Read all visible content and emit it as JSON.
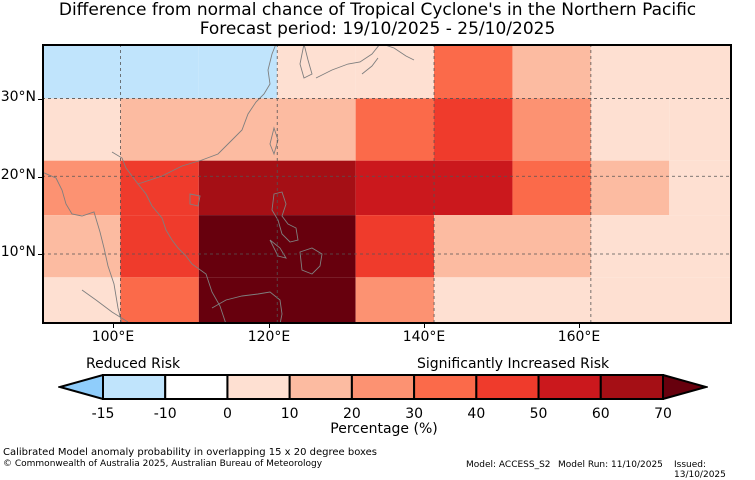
{
  "title": {
    "line1": "Difference from normal chance of Tropical Cyclone's in the Northern Pacific",
    "line2": "Forecast period: 19/10/2025 - 25/10/2025"
  },
  "map": {
    "lon_range": [
      90,
      178
    ],
    "lat_range": [
      1,
      37
    ],
    "lat_labels": [
      "30°N",
      "20°N",
      "10°N"
    ],
    "lat_values": [
      30,
      20,
      10
    ],
    "lon_labels": [
      "100°E",
      "120°E",
      "140°E",
      "160°E"
    ],
    "lon_values": [
      100,
      120,
      140,
      160
    ],
    "cells": [
      {
        "lon0": 90,
        "lon1": 110,
        "lat0": 30,
        "lat1": 37,
        "v": -14
      },
      {
        "lon0": 110,
        "lon1": 120,
        "lat0": 30,
        "lat1": 37,
        "v": -14
      },
      {
        "lon0": 120,
        "lon1": 130,
        "lat0": 30,
        "lat1": 37,
        "v": 0
      },
      {
        "lon0": 130,
        "lon1": 140,
        "lat0": 30,
        "lat1": 37,
        "v": 0
      },
      {
        "lon0": 140,
        "lon1": 150,
        "lat0": 30,
        "lat1": 37,
        "v": 34
      },
      {
        "lon0": 150,
        "lon1": 160,
        "lat0": 30,
        "lat1": 37,
        "v": 18
      },
      {
        "lon0": 160,
        "lon1": 178,
        "lat0": 30,
        "lat1": 37,
        "v": 0
      },
      {
        "lon0": 90,
        "lon1": 100,
        "lat0": 22,
        "lat1": 30,
        "v": 0
      },
      {
        "lon0": 100,
        "lon1": 130,
        "lat0": 22,
        "lat1": 30,
        "v": 15
      },
      {
        "lon0": 130,
        "lon1": 140,
        "lat0": 22,
        "lat1": 30,
        "v": 35
      },
      {
        "lon0": 140,
        "lon1": 150,
        "lat0": 22,
        "lat1": 30,
        "v": 43
      },
      {
        "lon0": 150,
        "lon1": 160,
        "lat0": 22,
        "lat1": 30,
        "v": 25
      },
      {
        "lon0": 160,
        "lon1": 170,
        "lat0": 22,
        "lat1": 30,
        "v": 5
      },
      {
        "lon0": 170,
        "lon1": 178,
        "lat0": 22,
        "lat1": 30,
        "v": 0
      },
      {
        "lon0": 90,
        "lon1": 100,
        "lat0": 15,
        "lat1": 22,
        "v": 28
      },
      {
        "lon0": 100,
        "lon1": 110,
        "lat0": 15,
        "lat1": 22,
        "v": 45
      },
      {
        "lon0": 110,
        "lon1": 130,
        "lat0": 15,
        "lat1": 22,
        "v": 65
      },
      {
        "lon0": 130,
        "lon1": 150,
        "lat0": 15,
        "lat1": 22,
        "v": 55
      },
      {
        "lon0": 150,
        "lon1": 160,
        "lat0": 15,
        "lat1": 22,
        "v": 36
      },
      {
        "lon0": 160,
        "lon1": 170,
        "lat0": 15,
        "lat1": 22,
        "v": 15
      },
      {
        "lon0": 170,
        "lon1": 178,
        "lat0": 15,
        "lat1": 22,
        "v": 5
      },
      {
        "lon0": 90,
        "lon1": 100,
        "lat0": 7,
        "lat1": 15,
        "v": 18
      },
      {
        "lon0": 100,
        "lon1": 110,
        "lat0": 7,
        "lat1": 15,
        "v": 45
      },
      {
        "lon0": 110,
        "lon1": 130,
        "lat0": 7,
        "lat1": 15,
        "v": 75
      },
      {
        "lon0": 130,
        "lon1": 140,
        "lat0": 7,
        "lat1": 15,
        "v": 45
      },
      {
        "lon0": 140,
        "lon1": 160,
        "lat0": 7,
        "lat1": 15,
        "v": 15
      },
      {
        "lon0": 160,
        "lon1": 178,
        "lat0": 7,
        "lat1": 15,
        "v": 5
      },
      {
        "lon0": 90,
        "lon1": 100,
        "lat0": 1,
        "lat1": 7,
        "v": 5
      },
      {
        "lon0": 100,
        "lon1": 110,
        "lat0": 1,
        "lat1": 7,
        "v": 35
      },
      {
        "lon0": 110,
        "lon1": 130,
        "lat0": 1,
        "lat1": 7,
        "v": 75
      },
      {
        "lon0": 130,
        "lon1": 140,
        "lat0": 1,
        "lat1": 7,
        "v": 25
      },
      {
        "lon0": 140,
        "lon1": 178,
        "lat0": 1,
        "lat1": 7,
        "v": 0
      }
    ]
  },
  "colorbar": {
    "left_label": "Reduced Risk",
    "right_label": "Significantly Increased Risk",
    "tick_labels": [
      "-15",
      "-10",
      "0",
      "10",
      "20",
      "30",
      "40",
      "50",
      "60",
      "70"
    ],
    "bounds": [
      -15,
      -10,
      0,
      10,
      20,
      30,
      40,
      50,
      60,
      70
    ],
    "colors": [
      "#c0e4fc",
      "#ffffff",
      "#fee0d2",
      "#fcbba1",
      "#fc9272",
      "#fb6a4a",
      "#ef3b2c",
      "#cb181d",
      "#a50f15"
    ],
    "under_color": "#8fcdfb",
    "over_color": "#67000d",
    "title": "Percentage (%)"
  },
  "footer": {
    "line1": "Calibrated Model anomaly probability in overlapping 15 x 20 degree boxes",
    "line2": "© Commonwealth of Australia 2025, Australian Bureau of Meteorology",
    "model": "Model: ACCESS_S2",
    "run": "Model Run: 11/10/2025",
    "issued": "Issued: 13/10/2025"
  }
}
